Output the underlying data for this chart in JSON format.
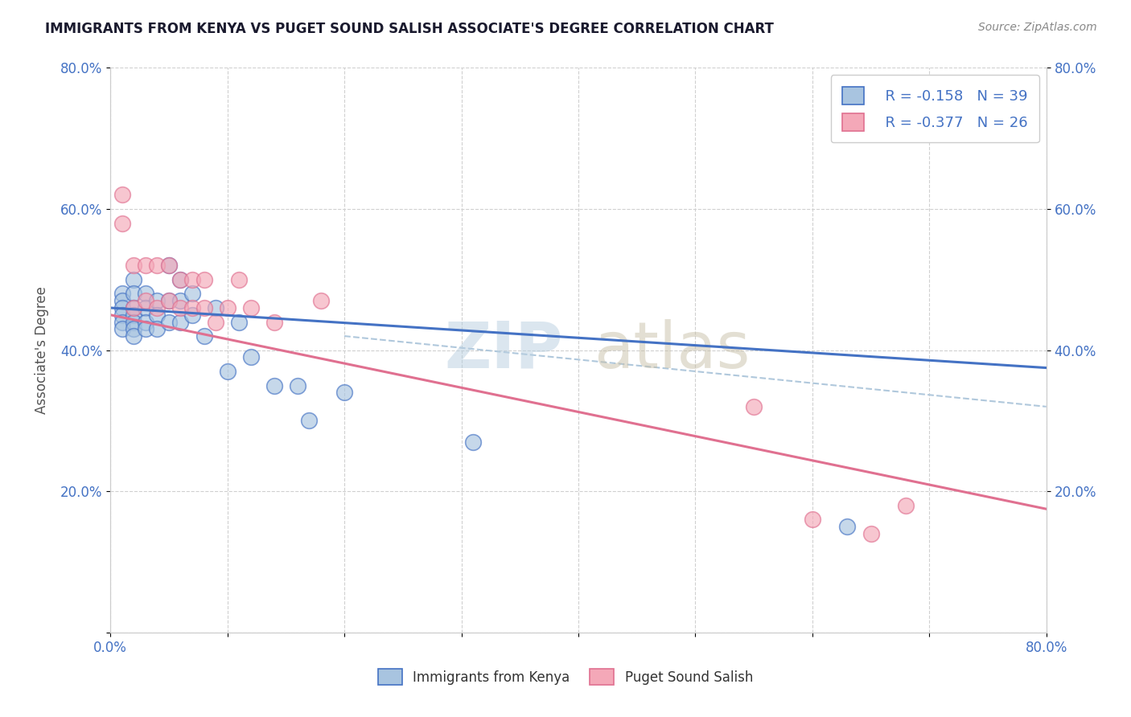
{
  "title": "IMMIGRANTS FROM KENYA VS PUGET SOUND SALISH ASSOCIATE'S DEGREE CORRELATION CHART",
  "source_text": "Source: ZipAtlas.com",
  "ylabel": "Associate's Degree",
  "xlim": [
    0.0,
    0.8
  ],
  "ylim": [
    0.0,
    0.8
  ],
  "xtick_positions": [
    0.0,
    0.1,
    0.2,
    0.3,
    0.4,
    0.5,
    0.6,
    0.7,
    0.8
  ],
  "xtick_labels_show": [
    "0.0%",
    "",
    "",
    "",
    "",
    "",
    "",
    "",
    "80.0%"
  ],
  "ytick_positions": [
    0.0,
    0.2,
    0.4,
    0.6,
    0.8
  ],
  "ytick_labels": [
    "",
    "20.0%",
    "40.0%",
    "60.0%",
    "80.0%"
  ],
  "right_ytick_positions": [
    0.2,
    0.4,
    0.6,
    0.8
  ],
  "right_ytick_labels": [
    "20.0%",
    "40.0%",
    "60.0%",
    "80.0%"
  ],
  "legend_blue_r": "R = -0.158",
  "legend_blue_n": "N = 39",
  "legend_pink_r": "R = -0.377",
  "legend_pink_n": "N = 26",
  "legend_blue_label": "Immigrants from Kenya",
  "legend_pink_label": "Puget Sound Salish",
  "blue_color": "#a8c4e0",
  "pink_color": "#f4a8b8",
  "blue_line_color": "#4472c4",
  "pink_line_color": "#e07090",
  "trend_dash_color": "#b0c8dc",
  "blue_scatter_x": [
    0.01,
    0.01,
    0.01,
    0.01,
    0.01,
    0.01,
    0.02,
    0.02,
    0.02,
    0.02,
    0.02,
    0.02,
    0.02,
    0.03,
    0.03,
    0.03,
    0.03,
    0.04,
    0.04,
    0.04,
    0.05,
    0.05,
    0.05,
    0.06,
    0.06,
    0.06,
    0.07,
    0.07,
    0.08,
    0.09,
    0.1,
    0.11,
    0.12,
    0.14,
    0.16,
    0.17,
    0.2,
    0.31,
    0.63
  ],
  "blue_scatter_y": [
    0.48,
    0.47,
    0.46,
    0.45,
    0.44,
    0.43,
    0.5,
    0.48,
    0.46,
    0.45,
    0.44,
    0.43,
    0.42,
    0.48,
    0.46,
    0.44,
    0.43,
    0.47,
    0.45,
    0.43,
    0.52,
    0.47,
    0.44,
    0.5,
    0.47,
    0.44,
    0.48,
    0.45,
    0.42,
    0.46,
    0.37,
    0.44,
    0.39,
    0.35,
    0.35,
    0.3,
    0.34,
    0.27,
    0.15
  ],
  "pink_scatter_x": [
    0.01,
    0.01,
    0.02,
    0.02,
    0.03,
    0.03,
    0.04,
    0.04,
    0.05,
    0.05,
    0.06,
    0.06,
    0.07,
    0.07,
    0.08,
    0.08,
    0.09,
    0.1,
    0.11,
    0.12,
    0.14,
    0.18,
    0.55,
    0.6,
    0.65,
    0.68
  ],
  "pink_scatter_y": [
    0.62,
    0.58,
    0.52,
    0.46,
    0.52,
    0.47,
    0.52,
    0.46,
    0.52,
    0.47,
    0.5,
    0.46,
    0.5,
    0.46,
    0.5,
    0.46,
    0.44,
    0.46,
    0.5,
    0.46,
    0.44,
    0.47,
    0.32,
    0.16,
    0.14,
    0.18
  ],
  "blue_trendline_x": [
    0.0,
    0.8
  ],
  "blue_trendline_y": [
    0.46,
    0.375
  ],
  "pink_trendline_x": [
    0.0,
    0.8
  ],
  "pink_trendline_y": [
    0.45,
    0.175
  ],
  "dash_line_x": [
    0.2,
    0.8
  ],
  "dash_line_y": [
    0.42,
    0.32
  ],
  "grid_color": "#d0d0d0",
  "background_color": "#ffffff",
  "title_color": "#1a1a2e",
  "source_color": "#888888",
  "tick_label_color": "#4472c4"
}
